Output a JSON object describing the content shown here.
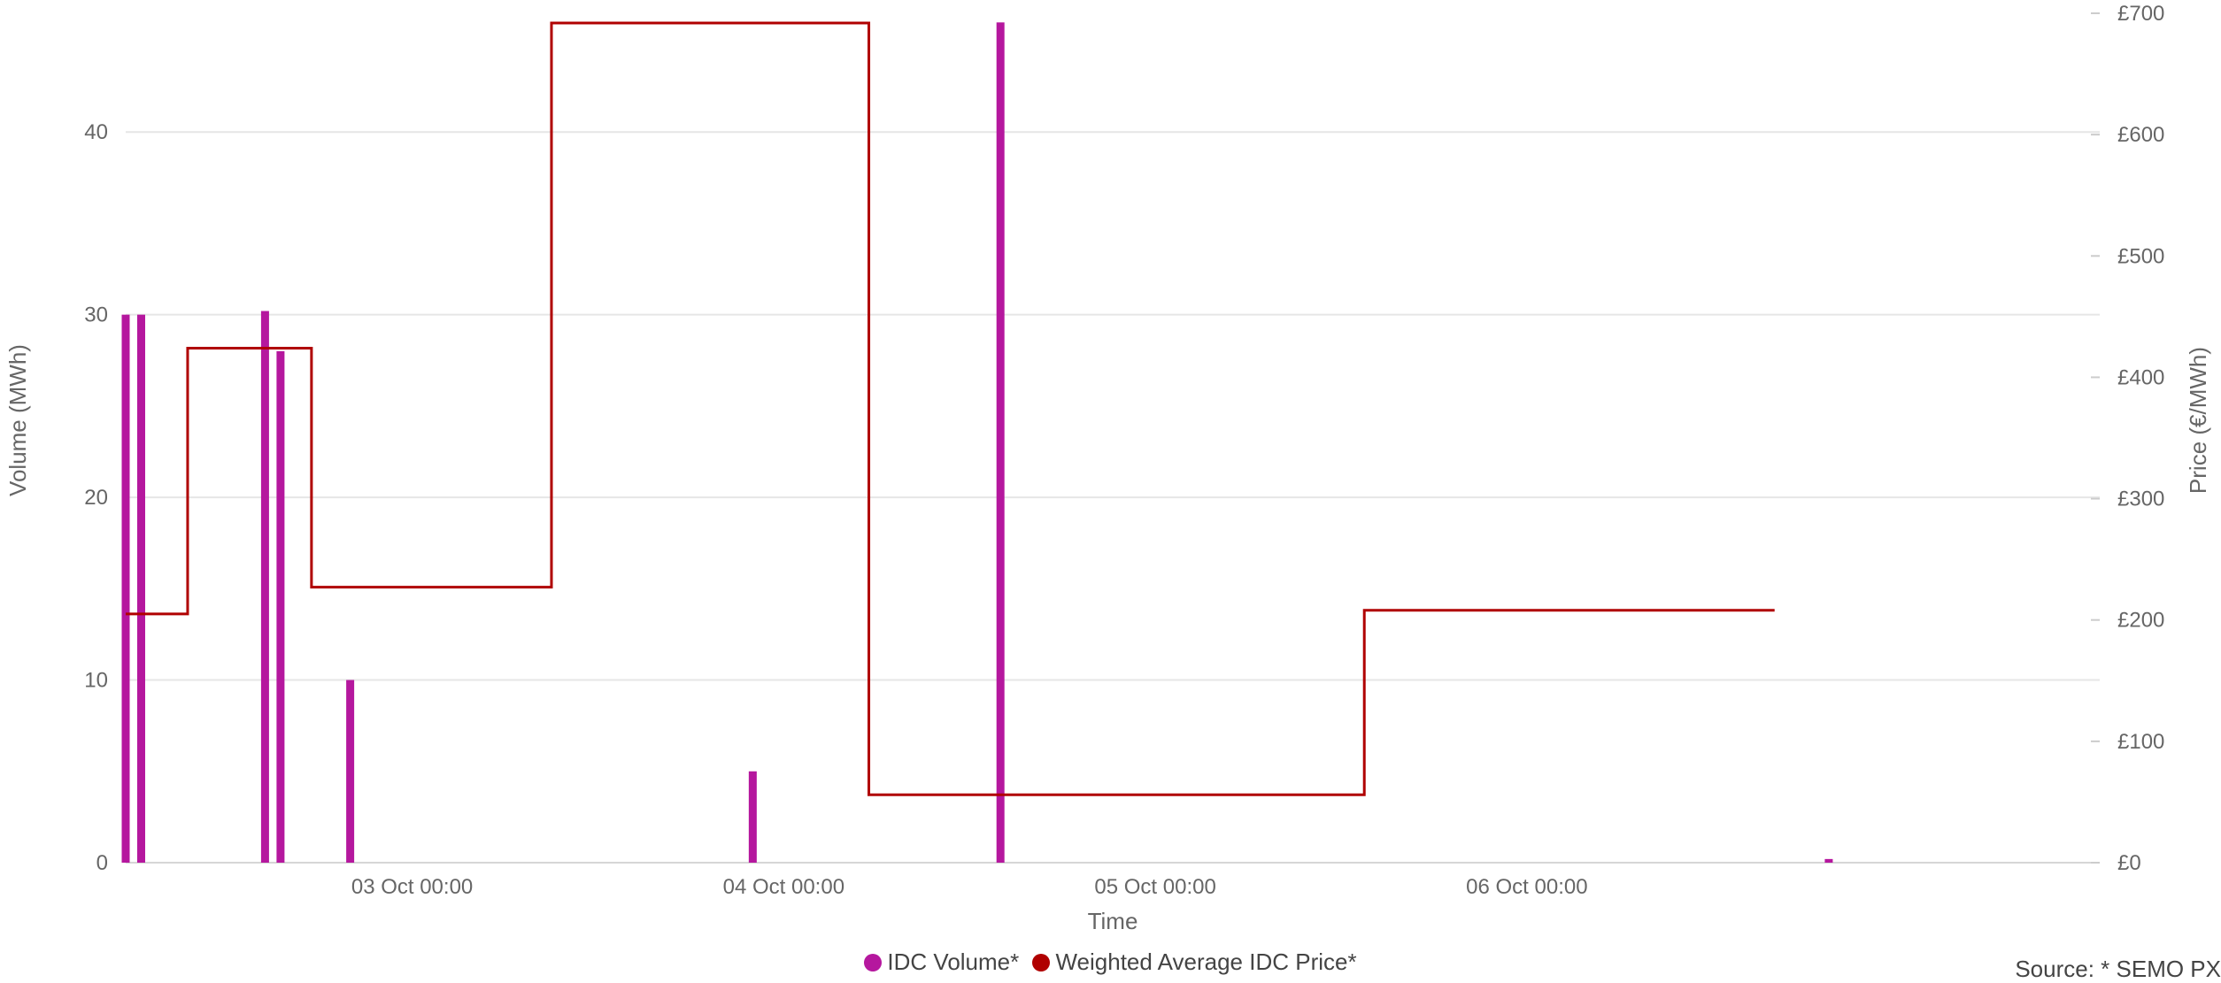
{
  "chart_data": {
    "type": "bar+line",
    "xlabel": "Time",
    "ylabel_left": "Volume (MWh)",
    "ylabel_right": "Price (€/MWh)",
    "x_ticks": [
      "03 Oct 00:00",
      "04 Oct 00:00",
      "05 Oct 00:00",
      "06 Oct 00:00"
    ],
    "x_range_hours": [
      -18.5,
      109
    ],
    "y_left": {
      "min": 0,
      "max": 46.5,
      "ticks": [
        0,
        10,
        20,
        30,
        40
      ]
    },
    "y_right": {
      "min": 0,
      "max": 700,
      "ticks": [
        "£0",
        "£100",
        "£200",
        "£300",
        "£400",
        "£500",
        "£600",
        "£700"
      ]
    },
    "grid": true,
    "legend_position": "bottom",
    "series": [
      {
        "name": "IDC Volume*",
        "kind": "bar",
        "color": "#b5179e",
        "axis": "left",
        "points": [
          {
            "t": "02 Oct 05:30",
            "value": 30
          },
          {
            "t": "02 Oct 06:30",
            "value": 30
          },
          {
            "t": "02 Oct 14:30",
            "value": 30.2
          },
          {
            "t": "02 Oct 15:30",
            "value": 28
          },
          {
            "t": "02 Oct 20:00",
            "value": 10
          },
          {
            "t": "03 Oct 22:00",
            "value": 5
          },
          {
            "t": "04 Oct 14:00",
            "value": 46
          },
          {
            "t": "06 Oct 19:30",
            "value": 0.2
          }
        ]
      },
      {
        "name": "Weighted Average IDC Price*",
        "kind": "step-line",
        "color": "#b00000",
        "axis": "right",
        "points": [
          {
            "t": "02 Oct 05:30",
            "value": 205
          },
          {
            "t": "02 Oct 09:30",
            "value": 424
          },
          {
            "t": "02 Oct 17:30",
            "value": 227
          },
          {
            "t": "03 Oct 09:00",
            "value": 692
          },
          {
            "t": "04 Oct 05:30",
            "value": 56
          },
          {
            "t": "05 Oct 13:30",
            "value": 208
          },
          {
            "t": "06 Oct 16:00",
            "value": 208
          }
        ]
      }
    ]
  },
  "source": "Source: * SEMO  PX"
}
